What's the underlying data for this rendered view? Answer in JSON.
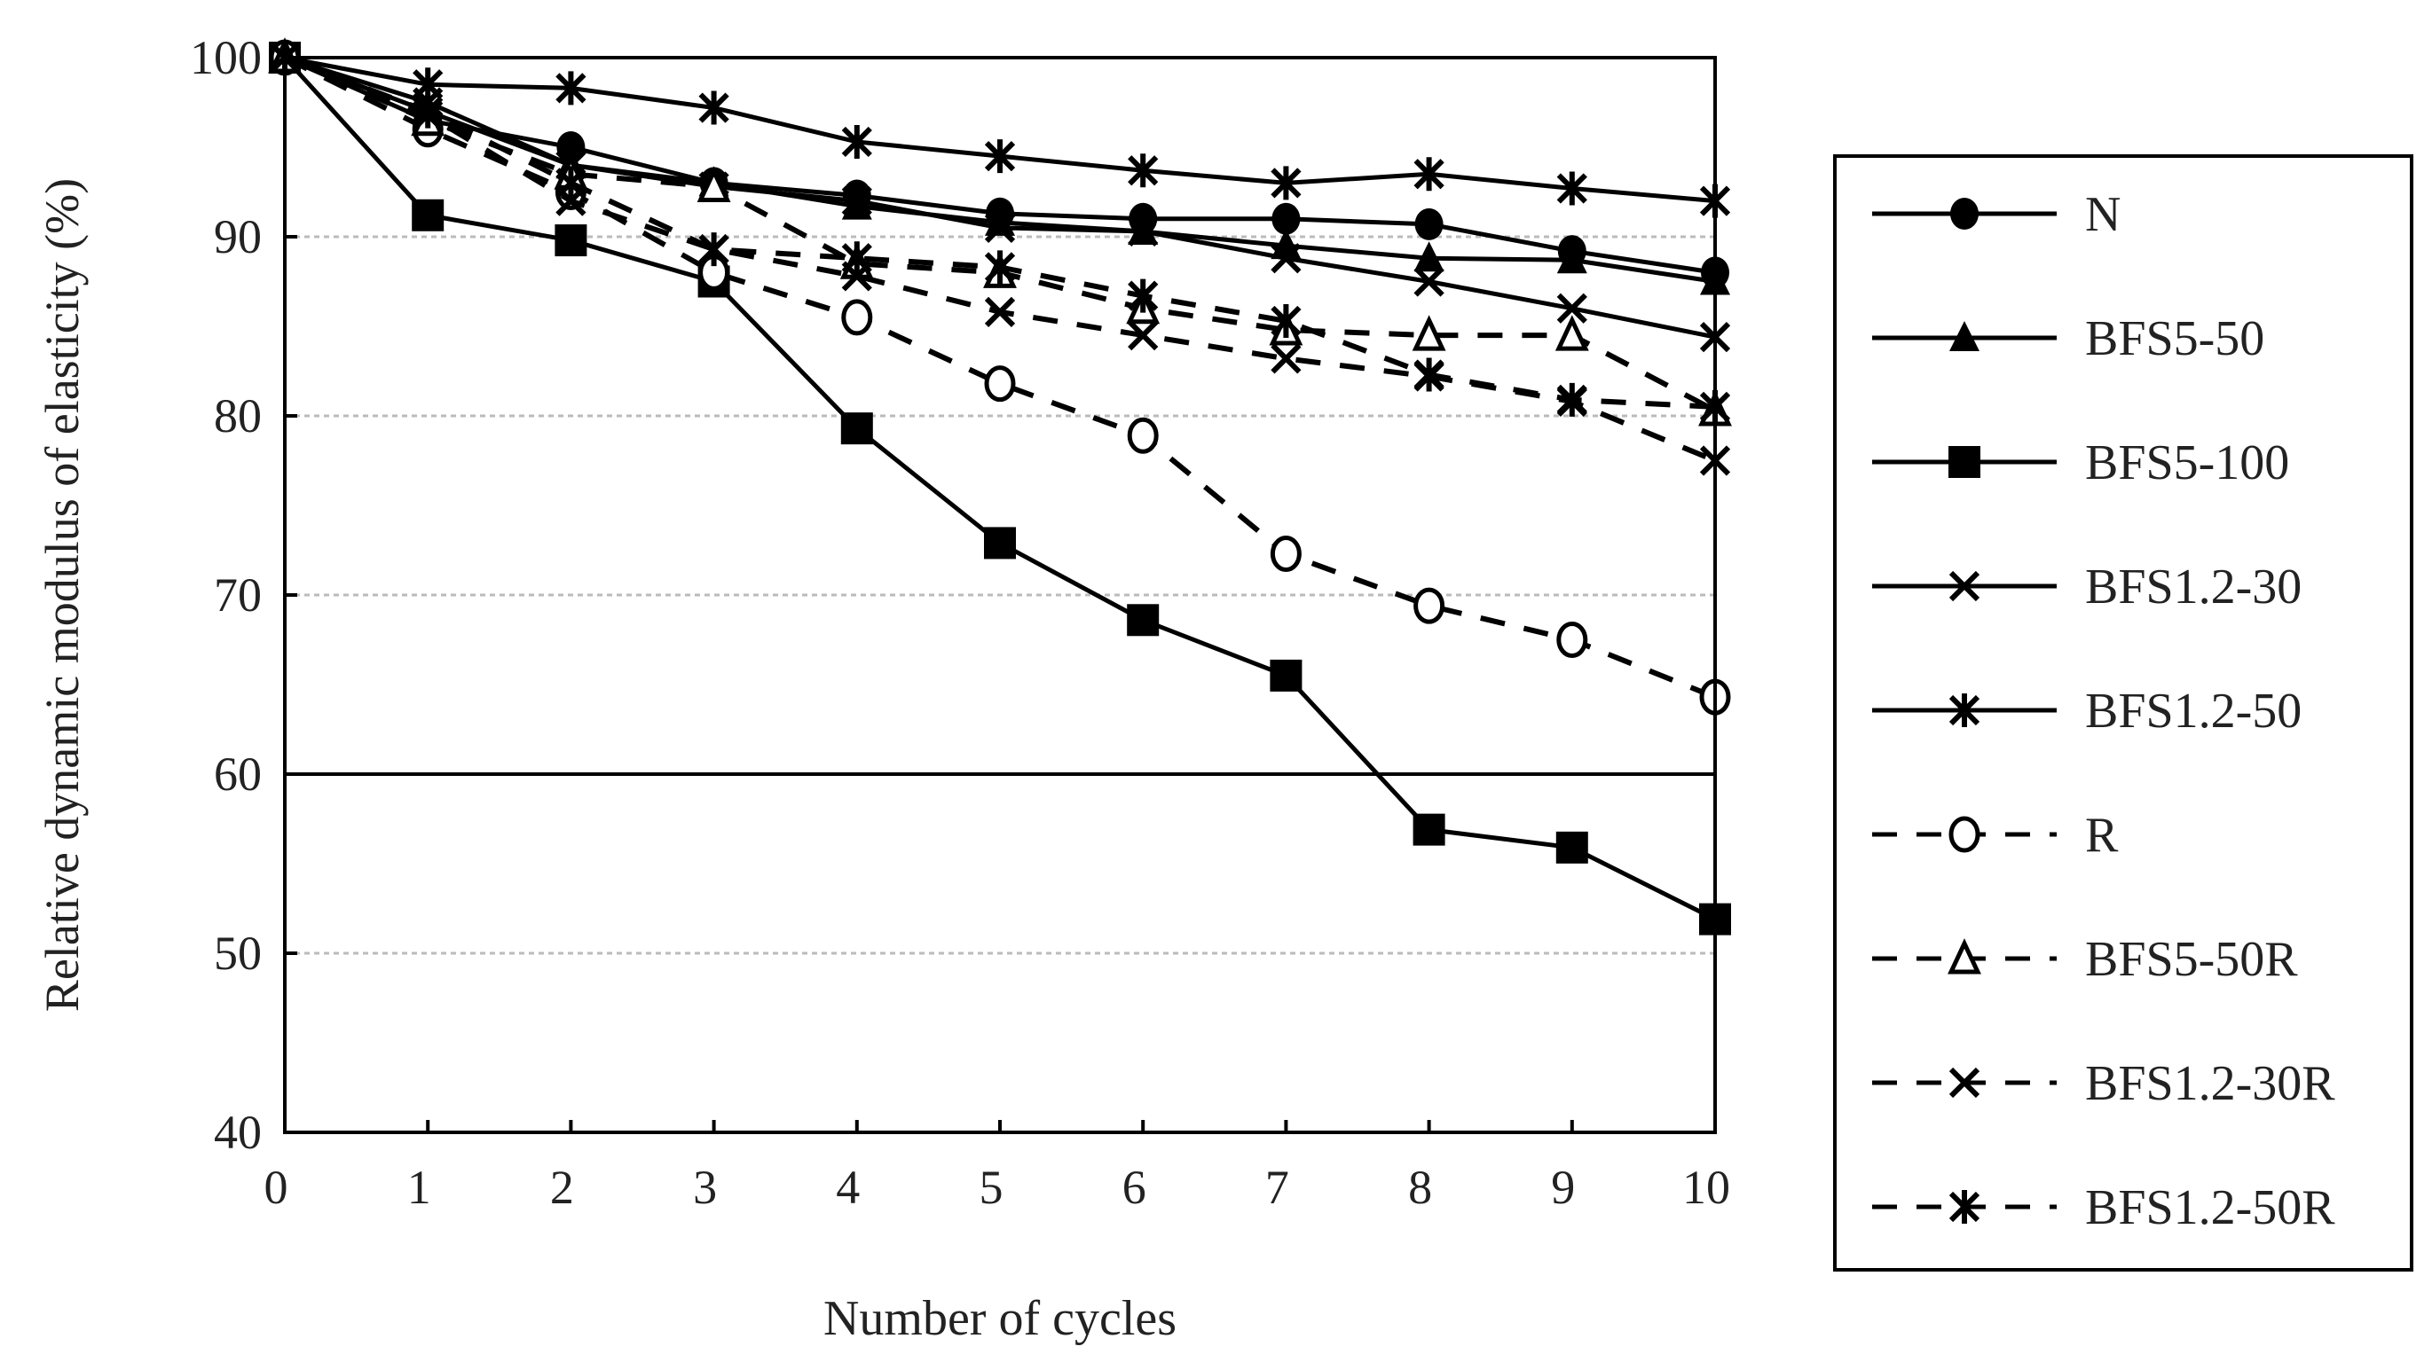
{
  "chart_data": {
    "type": "line",
    "title": "",
    "xlabel": "Number of cycles",
    "ylabel": "Relative dynamic modulus of elasticity (%)",
    "xlim": [
      0,
      10
    ],
    "ylim": [
      40,
      100
    ],
    "x_ticks": [
      "0",
      "1",
      "2",
      "3",
      "4",
      "5",
      "6",
      "7",
      "8",
      "9",
      "10"
    ],
    "y_ticks": [
      "40",
      "50",
      "60",
      "70",
      "80",
      "90",
      "100"
    ],
    "grid": "horizontal dotted",
    "reference_line": 60,
    "legend_position": "right",
    "x": [
      0,
      1,
      2,
      3,
      4,
      5,
      6,
      7,
      8,
      9,
      10
    ],
    "series": [
      {
        "name": "N",
        "marker": "filled-circle",
        "line": "solid",
        "values": [
          100,
          96.5,
          95,
          93,
          92.3,
          91.3,
          91,
          91,
          90.7,
          89.2,
          88
        ]
      },
      {
        "name": "BFS5-50",
        "marker": "filled-triangle",
        "line": "solid",
        "values": [
          100,
          97,
          94,
          93,
          91.7,
          90.8,
          90.3,
          89.5,
          88.8,
          88.7,
          87.5
        ]
      },
      {
        "name": "BFS5-100",
        "marker": "filled-square",
        "line": "solid",
        "values": [
          100,
          91.2,
          89.8,
          87.5,
          79.3,
          72.9,
          68.6,
          65.5,
          56.9,
          55.9,
          51.9
        ]
      },
      {
        "name": "BFS1.2-30",
        "marker": "x",
        "line": "solid",
        "values": [
          100,
          97.5,
          94,
          92.8,
          92,
          90.5,
          90.3,
          88.8,
          87.5,
          86,
          84.4
        ]
      },
      {
        "name": "BFS1.2-50",
        "marker": "asterisk",
        "line": "solid",
        "values": [
          100,
          98.5,
          98.3,
          97.2,
          95.3,
          94.5,
          93.7,
          93,
          93.5,
          92.7,
          92
        ]
      },
      {
        "name": "R",
        "marker": "open-circle",
        "line": "dashed",
        "values": [
          100,
          96,
          92.5,
          88,
          85.5,
          81.8,
          78.9,
          72.3,
          69.4,
          67.5,
          64.3
        ]
      },
      {
        "name": "BFS5-50R",
        "marker": "open-triangle",
        "line": "dashed",
        "values": [
          100,
          96.5,
          93.5,
          92.8,
          88.5,
          88,
          86,
          84.8,
          84.5,
          84.5,
          80.3
        ]
      },
      {
        "name": "BFS1.2-30R",
        "marker": "x",
        "line": "dashed",
        "values": [
          100,
          96.8,
          92,
          89.3,
          87.8,
          85.8,
          84.5,
          83.2,
          82.2,
          80.8,
          77.5
        ]
      },
      {
        "name": "BFS1.2-50R",
        "marker": "asterisk",
        "line": "dashed",
        "values": [
          100,
          97,
          93,
          89.3,
          88.8,
          88.3,
          86.7,
          85.3,
          82.3,
          80.9,
          80.5
        ]
      }
    ]
  }
}
